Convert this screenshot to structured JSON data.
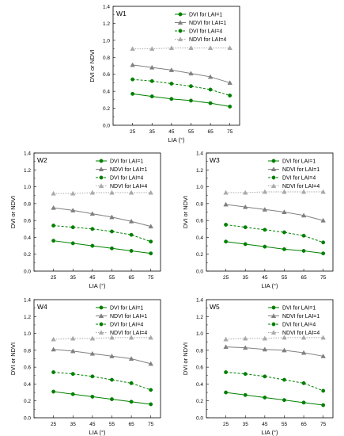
{
  "chart_data": [
    {
      "type": "line",
      "panel": "W1",
      "xlabel": "LIA (°)",
      "ylabel": "DVI or NDVI",
      "x": [
        25,
        35,
        45,
        55,
        65,
        75
      ],
      "xlim": [
        15,
        80
      ],
      "ylim": [
        0.0,
        1.4
      ],
      "yticks": [
        "0.0",
        "0.2",
        "0.4",
        "0.6",
        "0.8",
        "1.0",
        "1.2",
        "1.4"
      ],
      "legend_position": "top-right",
      "series": [
        {
          "name": "DVI for LAI=1",
          "values": [
            0.37,
            0.34,
            0.31,
            0.29,
            0.26,
            0.22
          ]
        },
        {
          "name": "NDVI for LAI=1",
          "values": [
            0.71,
            0.68,
            0.65,
            0.61,
            0.57,
            0.5
          ]
        },
        {
          "name": "DVI for LAI=4",
          "values": [
            0.54,
            0.52,
            0.49,
            0.46,
            0.42,
            0.35
          ]
        },
        {
          "name": "NDVI for LAI=4",
          "values": [
            0.9,
            0.9,
            0.91,
            0.91,
            0.91,
            0.91
          ]
        }
      ]
    },
    {
      "type": "line",
      "panel": "W2",
      "xlabel": "LIA (°)",
      "ylabel": "DVI or NDVI",
      "x": [
        25,
        35,
        45,
        55,
        65,
        75
      ],
      "xlim": [
        15,
        80
      ],
      "ylim": [
        0.0,
        1.4
      ],
      "yticks": [
        "0.0",
        "0.2",
        "0.4",
        "0.6",
        "0.8",
        "1.0",
        "1.2",
        "1.4"
      ],
      "legend_position": "top-right",
      "series": [
        {
          "name": "DVI for LAI=1",
          "values": [
            0.36,
            0.33,
            0.3,
            0.27,
            0.24,
            0.21
          ]
        },
        {
          "name": "NDVI for LAI=1",
          "values": [
            0.75,
            0.72,
            0.68,
            0.64,
            0.59,
            0.53
          ]
        },
        {
          "name": "DVI for LAI=4",
          "values": [
            0.54,
            0.52,
            0.5,
            0.47,
            0.43,
            0.35
          ]
        },
        {
          "name": "NDVI for LAI=4",
          "values": [
            0.92,
            0.92,
            0.93,
            0.93,
            0.93,
            0.93
          ]
        }
      ]
    },
    {
      "type": "line",
      "panel": "W3",
      "xlabel": "LIA (°)",
      "ylabel": "DVI or NDVI",
      "x": [
        25,
        35,
        45,
        55,
        65,
        75
      ],
      "xlim": [
        15,
        80
      ],
      "ylim": [
        0.0,
        1.4
      ],
      "yticks": [
        "0.0",
        "0.2",
        "0.4",
        "0.6",
        "0.8",
        "1.0",
        "1.2",
        "1.4"
      ],
      "legend_position": "top-right",
      "series": [
        {
          "name": "DVI for LAI=1",
          "values": [
            0.35,
            0.32,
            0.29,
            0.26,
            0.24,
            0.21
          ]
        },
        {
          "name": "NDVI for LAI=1",
          "values": [
            0.79,
            0.76,
            0.73,
            0.7,
            0.66,
            0.6
          ]
        },
        {
          "name": "DVI for LAI=4",
          "values": [
            0.55,
            0.52,
            0.49,
            0.46,
            0.42,
            0.34
          ]
        },
        {
          "name": "NDVI for LAI=4",
          "values": [
            0.93,
            0.93,
            0.94,
            0.94,
            0.94,
            0.94
          ]
        }
      ]
    },
    {
      "type": "line",
      "panel": "W4",
      "xlabel": "LIA (°)",
      "ylabel": "DVI or NDVI",
      "x": [
        25,
        35,
        45,
        55,
        65,
        75
      ],
      "xlim": [
        15,
        80
      ],
      "ylim": [
        0.0,
        1.4
      ],
      "yticks": [
        "0.0",
        "0.2",
        "0.4",
        "0.6",
        "0.8",
        "1.0",
        "1.2",
        "1.4"
      ],
      "legend_position": "top-right",
      "series": [
        {
          "name": "DVI for LAI=1",
          "values": [
            0.31,
            0.28,
            0.25,
            0.22,
            0.19,
            0.16
          ]
        },
        {
          "name": "NDVI for LAI=1",
          "values": [
            0.81,
            0.79,
            0.76,
            0.73,
            0.7,
            0.64
          ]
        },
        {
          "name": "DVI for LAI=4",
          "values": [
            0.54,
            0.52,
            0.49,
            0.45,
            0.41,
            0.33
          ]
        },
        {
          "name": "NDVI for LAI=4",
          "values": [
            0.93,
            0.94,
            0.94,
            0.95,
            0.95,
            0.95
          ]
        }
      ]
    },
    {
      "type": "line",
      "panel": "W5",
      "xlabel": "LIA (°)",
      "ylabel": "DVI or NDVI",
      "x": [
        25,
        35,
        45,
        55,
        65,
        75
      ],
      "xlim": [
        15,
        80
      ],
      "ylim": [
        0.0,
        1.4
      ],
      "yticks": [
        "0.0",
        "0.2",
        "0.4",
        "0.6",
        "0.8",
        "1.0",
        "1.2",
        "1.4"
      ],
      "legend_position": "top-right",
      "series": [
        {
          "name": "DVI for LAI=1",
          "values": [
            0.3,
            0.27,
            0.24,
            0.21,
            0.18,
            0.15
          ]
        },
        {
          "name": "NDVI for LAI=1",
          "values": [
            0.84,
            0.83,
            0.81,
            0.8,
            0.77,
            0.73
          ]
        },
        {
          "name": "DVI for LAI=4",
          "values": [
            0.54,
            0.52,
            0.49,
            0.45,
            0.41,
            0.32
          ]
        },
        {
          "name": "NDVI for LAI=4",
          "values": [
            0.93,
            0.94,
            0.94,
            0.95,
            0.95,
            0.95
          ]
        }
      ]
    }
  ],
  "series_styles": [
    {
      "color": "#008000",
      "dash": "solid",
      "marker": "circle"
    },
    {
      "color": "#808080",
      "dash": "solid",
      "marker": "triangle"
    },
    {
      "color": "#008000",
      "dash": "dashed",
      "marker": "circle"
    },
    {
      "color": "#a9a9a9",
      "dash": "dotted",
      "marker": "triangle"
    }
  ]
}
